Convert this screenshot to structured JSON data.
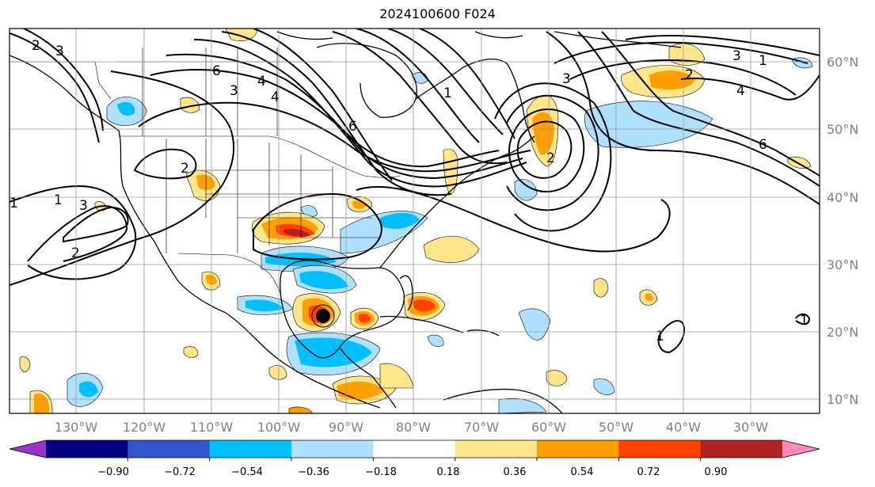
{
  "title": "2024100600 F024",
  "map": {
    "lon_labels": [
      "130°W",
      "120°W",
      "110°W",
      "100°W",
      "90°W",
      "80°W",
      "70°W",
      "60°W",
      "50°W",
      "40°W",
      "30°W"
    ],
    "lat_labels": [
      "60°N",
      "50°N",
      "40°N",
      "30°N",
      "20°N",
      "10°N"
    ],
    "contour_labels": [
      "1",
      "2",
      "3",
      "4",
      "6",
      "1",
      "2",
      "3",
      "4",
      "6",
      "1",
      "2",
      "3",
      "1",
      "2",
      "3",
      "1",
      "2",
      "3",
      "4",
      "6",
      "1"
    ]
  },
  "colorbar": {
    "tick_labels": [
      "−0.90",
      "−0.72",
      "−0.54",
      "−0.36",
      "−0.18",
      "0.18",
      "0.36",
      "0.54",
      "0.72",
      "0.90"
    ],
    "colors": [
      "#9933cc",
      "#000080",
      "#3355cc",
      "#00bfff",
      "#b0e0ff",
      "#ffffff",
      "#ffe68a",
      "#ffa000",
      "#ff4000",
      "#b22222",
      "#ff88bb"
    ]
  }
}
